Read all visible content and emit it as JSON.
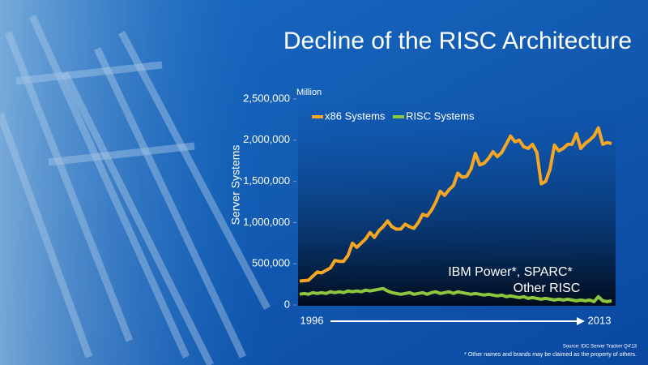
{
  "chart_data": {
    "type": "line",
    "title": "Decline of the RISC Architecture",
    "y_unit_label": "Million",
    "ylabel": "Server Systems",
    "categories": [
      "1996",
      null,
      null,
      null,
      null,
      null,
      null,
      null,
      null,
      null,
      null,
      null,
      null,
      null,
      null,
      null,
      null,
      null,
      null,
      null,
      null,
      null,
      null,
      null,
      null,
      null,
      null,
      null,
      null,
      null,
      null,
      null,
      null,
      null,
      null,
      null,
      null,
      null,
      null,
      null,
      null,
      null,
      null,
      null,
      null,
      null,
      null,
      null,
      null,
      null,
      null,
      null,
      null,
      null,
      null,
      null,
      null,
      null,
      null,
      null,
      null,
      null,
      null,
      null,
      null,
      null,
      null,
      null,
      null,
      null,
      null,
      "2013"
    ],
    "series": [
      {
        "name": "x86 Systems",
        "color": "#f5a623",
        "values": [
          290000,
          295000,
          300000,
          350000,
          400000,
          390000,
          420000,
          450000,
          540000,
          530000,
          530000,
          600000,
          750000,
          700000,
          750000,
          800000,
          880000,
          820000,
          900000,
          950000,
          1020000,
          950000,
          920000,
          920000,
          980000,
          950000,
          930000,
          1000000,
          1100000,
          1080000,
          1150000,
          1250000,
          1380000,
          1330000,
          1400000,
          1450000,
          1600000,
          1550000,
          1560000,
          1650000,
          1840000,
          1700000,
          1720000,
          1780000,
          1860000,
          1800000,
          1850000,
          1950000,
          2050000,
          1980000,
          2000000,
          1920000,
          1900000,
          1950000,
          1850000,
          1470000,
          1500000,
          1650000,
          1940000,
          1870000,
          1900000,
          1950000,
          1950000,
          2080000,
          1900000,
          1960000,
          2000000,
          2050000,
          2150000,
          1950000,
          1970000,
          1960000
        ]
      },
      {
        "name": "RISC Systems",
        "color": "#8dc63f",
        "values": [
          130000,
          140000,
          130000,
          150000,
          140000,
          150000,
          140000,
          160000,
          150000,
          160000,
          150000,
          170000,
          160000,
          170000,
          160000,
          180000,
          170000,
          180000,
          190000,
          200000,
          170000,
          150000,
          140000,
          130000,
          140000,
          150000,
          130000,
          140000,
          150000,
          130000,
          150000,
          160000,
          140000,
          150000,
          160000,
          140000,
          160000,
          150000,
          140000,
          130000,
          140000,
          130000,
          120000,
          130000,
          120000,
          110000,
          120000,
          100000,
          110000,
          100000,
          90000,
          100000,
          80000,
          90000,
          80000,
          70000,
          80000,
          70000,
          60000,
          70000,
          60000,
          70000,
          60000,
          50000,
          60000,
          50000,
          60000,
          40000,
          100000,
          50000,
          40000,
          50000
        ]
      }
    ],
    "ylim": [
      0,
      2500000
    ],
    "yticks": [
      {
        "value": 0,
        "label": "0"
      },
      {
        "value": 500000,
        "label": "500,000"
      },
      {
        "value": 1000000,
        "label": "1,000,000"
      },
      {
        "value": 1500000,
        "label": "1,500,000"
      },
      {
        "value": 2000000,
        "label": "2,000,000"
      },
      {
        "value": 2500000,
        "label": "2,500,000"
      }
    ],
    "legend": "top-left",
    "annotations": [
      "IBM Power*, SPARC*",
      "Other RISC"
    ],
    "source": "Source: IDC Server Tracker Q4'13",
    "footnote": "* Other names and brands may be claimed as the property of others."
  }
}
